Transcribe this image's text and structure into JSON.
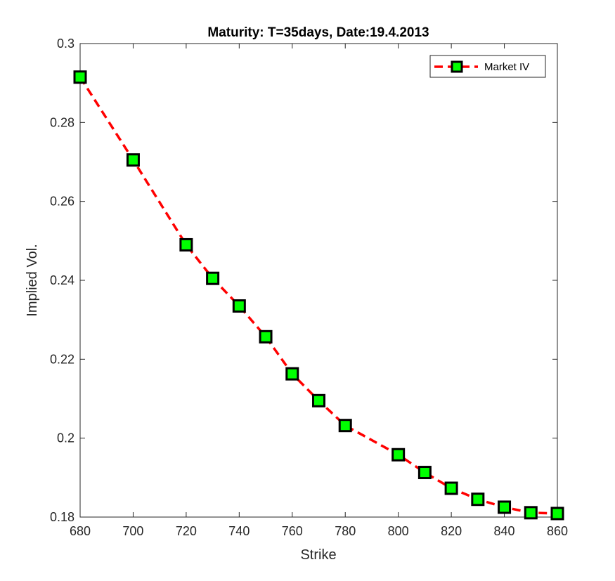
{
  "chart_data": {
    "type": "line",
    "title": "Maturity: T=35days, Date:19.4.2013",
    "xlabel": "Strike",
    "ylabel": "Implied Vol.",
    "xlim": [
      680,
      860
    ],
    "ylim": [
      0.18,
      0.3
    ],
    "xticks": [
      "680",
      "700",
      "720",
      "740",
      "760",
      "780",
      "800",
      "820",
      "840",
      "860"
    ],
    "yticks": [
      "0.18",
      "0.2",
      "0.22",
      "0.24",
      "0.26",
      "0.28",
      "0.3"
    ],
    "grid": false,
    "legend_position": "top-right",
    "series": [
      {
        "name": "Market IV",
        "line_style": "dashed",
        "line_color": "#ff0000",
        "marker": "square",
        "marker_face_color": "#00ff00",
        "marker_edge_color": "#000000",
        "x": [
          680,
          700,
          720,
          730,
          740,
          750,
          760,
          770,
          780,
          800,
          810,
          820,
          830,
          840,
          850,
          860
        ],
        "y": [
          0.2915,
          0.2705,
          0.249,
          0.2405,
          0.2335,
          0.2257,
          0.2163,
          0.2095,
          0.2032,
          0.1958,
          0.1913,
          0.1873,
          0.1845,
          0.1825,
          0.1811,
          0.1809
        ]
      }
    ]
  }
}
